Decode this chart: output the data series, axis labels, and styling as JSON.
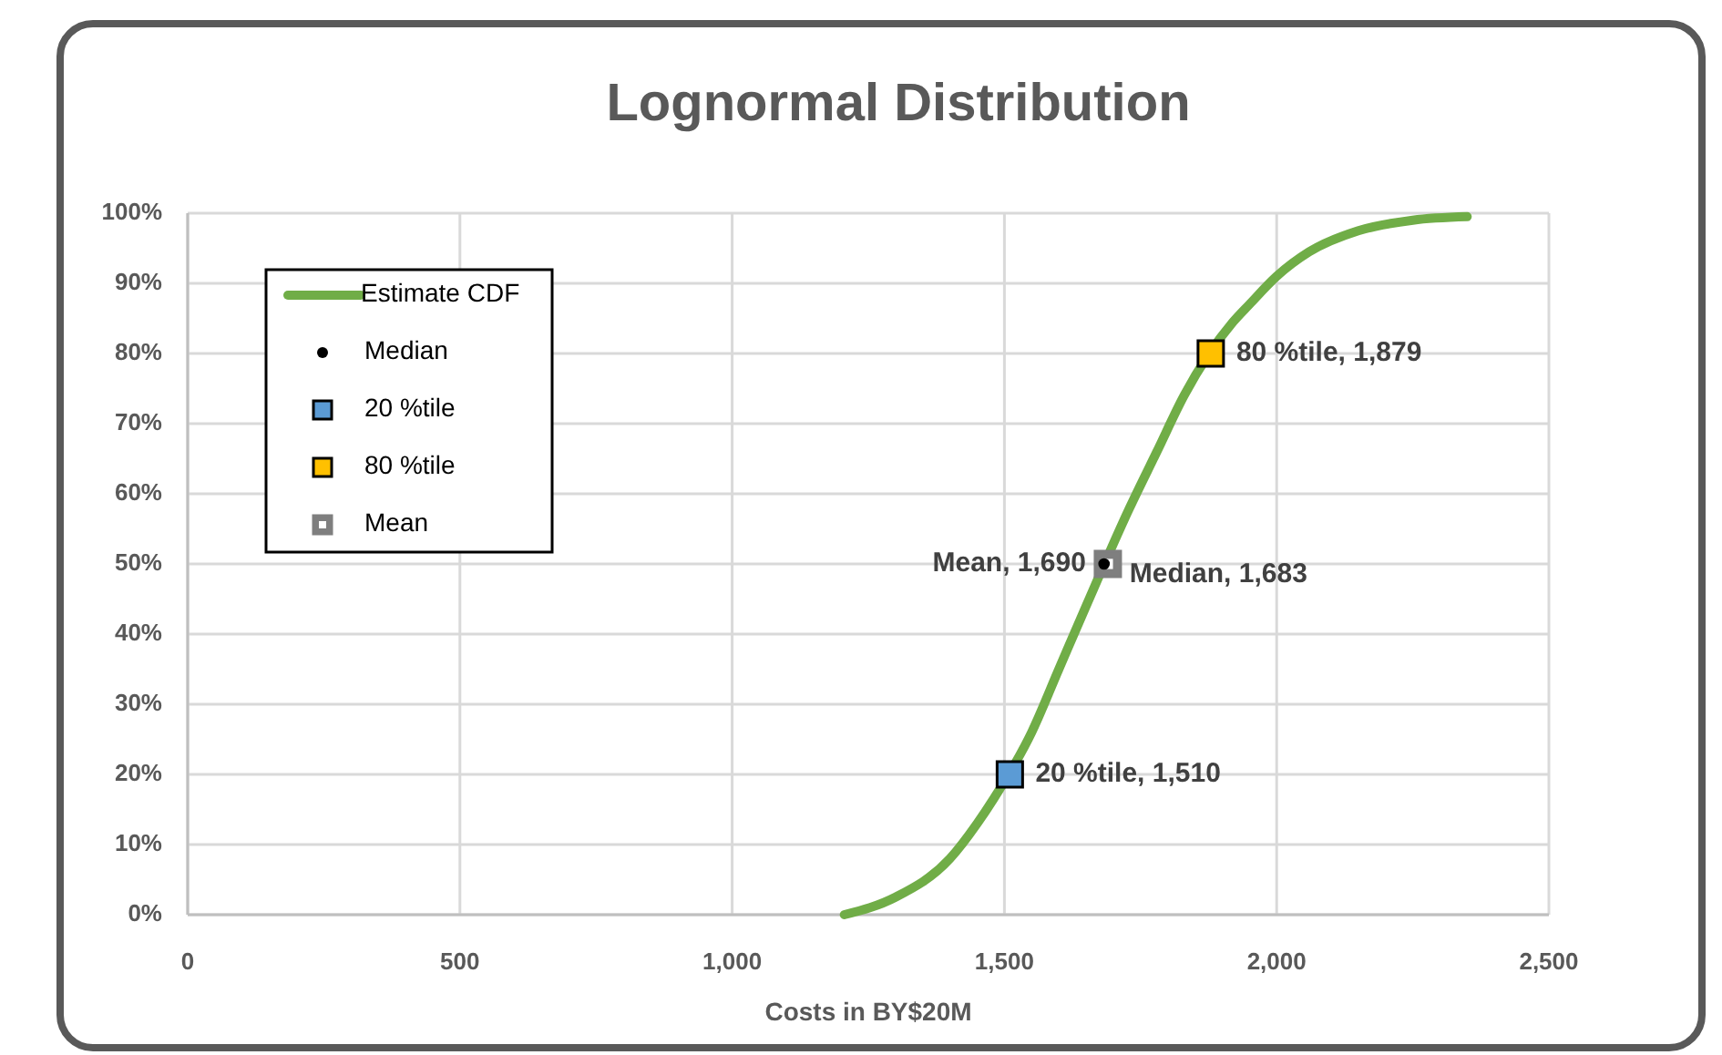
{
  "chart_data": {
    "type": "line",
    "title": "Lognormal Distribution",
    "xlabel": "Costs in BY$20M",
    "xlim": [
      0,
      2500
    ],
    "xticks": [
      0,
      {
        "value": 500,
        "label": "500"
      },
      {
        "value": 1000,
        "label": "1,000"
      },
      {
        "value": 1500,
        "label": "1,500"
      },
      {
        "value": 2000,
        "label": "2,000"
      },
      {
        "value": 2500,
        "label": "2,500"
      }
    ],
    "ylim": [
      0,
      100
    ],
    "yticks": [
      {
        "value": 0,
        "label": "0%"
      },
      {
        "value": 10,
        "label": "10%"
      },
      {
        "value": 20,
        "label": "20%"
      },
      {
        "value": 30,
        "label": "30%"
      },
      {
        "value": 40,
        "label": "40%"
      },
      {
        "value": 50,
        "label": "50%"
      },
      {
        "value": 60,
        "label": "60%"
      },
      {
        "value": 70,
        "label": "70%"
      },
      {
        "value": 80,
        "label": "80%"
      },
      {
        "value": 90,
        "label": "90%"
      },
      {
        "value": 100,
        "label": "100%"
      }
    ],
    "grid": true,
    "legend": "top left",
    "series": [
      {
        "name": "Estimate CDF",
        "marker": "none",
        "line_style": "solid",
        "color": "#70ad47",
        "x": [
          1206,
          1300,
          1400,
          1450,
          1480,
          1550,
          1600,
          1650,
          1730,
          1780,
          1830,
          1920,
          1950,
          2000,
          2060,
          2150,
          2250,
          2350
        ],
        "values": [
          0,
          2.5,
          8,
          13,
          16.5,
          26,
          35,
          44,
          58,
          66,
          74,
          84.5,
          87,
          91,
          94.5,
          97.5,
          99,
          99.5
        ]
      },
      {
        "name": "Median",
        "type": "scatter",
        "marker": "circle",
        "color": "#000000",
        "x": [
          1683
        ],
        "values": [
          50
        ]
      },
      {
        "name": "20 %tile",
        "type": "scatter",
        "marker": "square",
        "color": "#5b9bd5",
        "x": [
          1510
        ],
        "values": [
          20
        ]
      },
      {
        "name": "80 %tile",
        "type": "scatter",
        "marker": "square",
        "color": "#ffc000",
        "x": [
          1879
        ],
        "values": [
          80
        ]
      },
      {
        "name": "Mean",
        "type": "scatter",
        "marker": "square",
        "color": "#7f7f7f",
        "x": [
          1690
        ],
        "values": [
          50
        ]
      }
    ],
    "annotations": [
      {
        "text": "Median, 1,683",
        "x": 1683,
        "y": 50
      },
      {
        "text": "20 %tile, 1,510",
        "x": 1510,
        "y": 20
      },
      {
        "text": "80 %tile, 1,879",
        "x": 1879,
        "y": 80
      },
      {
        "text": "Mean, 1,690",
        "x": 1690,
        "y": 50
      }
    ]
  }
}
